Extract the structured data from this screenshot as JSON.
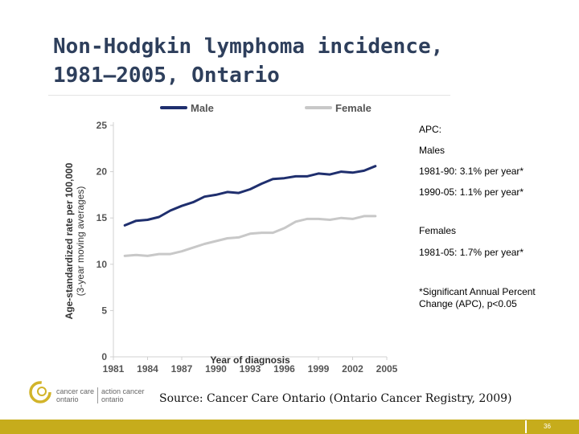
{
  "slide": {
    "title_line1": "Non-Hodgkin lymphoma incidence,",
    "title_line2": "1981–2005, Ontario",
    "source": "Source: Cancer Care Ontario (Ontario Cancer Registry, 2009)",
    "page_number": "36"
  },
  "logo": {
    "left_line1": "cancer care",
    "left_line2": "ontario",
    "right_line1": "action cancer",
    "right_line2": "ontario"
  },
  "apc_box": {
    "heading": "APC:",
    "males_label": "Males",
    "males_line1": "1981-90: 3.1% per year*",
    "males_line2": "1990-05: 1.1% per year*",
    "females_label": "Females",
    "females_line1": "1981-05: 1.7% per year*",
    "footnote": "*Significant Annual Percent Change (APC), p<0.05"
  },
  "colors": {
    "male": "#1f2f6e",
    "female": "#c8c8c8",
    "footer": "#c6ac1c",
    "title": "#2e3f5c"
  },
  "chart_data": {
    "type": "line",
    "xlabel": "Year of diagnosis",
    "ylabel_line1": "Age-standardized rate per 100,000",
    "ylabel_line2": "(3-year moving averages)",
    "xlim": [
      1981,
      2005
    ],
    "ylim": [
      0,
      25
    ],
    "x_ticks": [
      1981,
      1984,
      1987,
      1990,
      1993,
      1996,
      1999,
      2002,
      2005
    ],
    "y_ticks": [
      0,
      5,
      10,
      15,
      20,
      25
    ],
    "grid": false,
    "legend_position": "top",
    "x": [
      1982,
      1983,
      1984,
      1985,
      1986,
      1987,
      1988,
      1989,
      1990,
      1991,
      1992,
      1993,
      1994,
      1995,
      1996,
      1997,
      1998,
      1999,
      2000,
      2001,
      2002,
      2003,
      2004
    ],
    "series": [
      {
        "name": "Male",
        "color": "#1f2f6e",
        "values": [
          14.2,
          14.7,
          14.8,
          15.1,
          15.8,
          16.3,
          16.7,
          17.3,
          17.5,
          17.8,
          17.7,
          18.1,
          18.7,
          19.2,
          19.3,
          19.5,
          19.5,
          19.8,
          19.7,
          20.0,
          19.9,
          20.1,
          20.6
        ]
      },
      {
        "name": "Female",
        "color": "#c8c8c8",
        "values": [
          10.9,
          11.0,
          10.9,
          11.1,
          11.1,
          11.4,
          11.8,
          12.2,
          12.5,
          12.8,
          12.9,
          13.3,
          13.4,
          13.4,
          13.9,
          14.6,
          14.9,
          14.9,
          14.8,
          15.0,
          14.9,
          15.2,
          15.2
        ]
      }
    ]
  }
}
